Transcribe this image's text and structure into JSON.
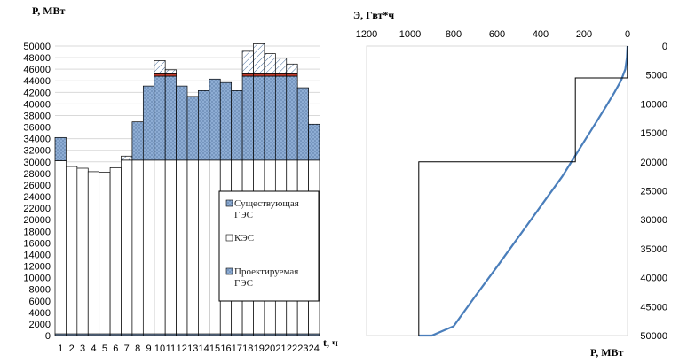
{
  "chart_data": [
    {
      "type": "bar",
      "subtype": "stacked",
      "ylabel": "P, МВт",
      "xlabel": "t, ч",
      "ylim": [
        0,
        50000
      ],
      "ytick_step": 2000,
      "categories": [
        "1",
        "2",
        "3",
        "4",
        "5",
        "6",
        "7",
        "8",
        "9",
        "10",
        "11",
        "12",
        "13",
        "14",
        "15",
        "16",
        "17",
        "18",
        "19",
        "20",
        "21",
        "22",
        "23",
        "24"
      ],
      "series": [
        {
          "name": "Существующая ГЭС",
          "values": [
            300,
            300,
            300,
            300,
            300,
            300,
            300,
            300,
            300,
            300,
            300,
            300,
            300,
            300,
            300,
            300,
            300,
            300,
            300,
            300,
            300,
            300,
            300,
            300
          ]
        },
        {
          "name": "КЭС",
          "values": [
            29900,
            28900,
            28600,
            28000,
            27900,
            28700,
            30000,
            30000,
            30000,
            30000,
            30000,
            30000,
            30000,
            30000,
            30000,
            30000,
            30000,
            30000,
            30000,
            30000,
            30000,
            30000,
            30000,
            30000
          ]
        },
        {
          "name": "Проектируемая ГЭС",
          "values": [
            4000,
            0,
            0,
            0,
            0,
            0,
            0,
            6600,
            12800,
            14500,
            14500,
            12800,
            11000,
            12000,
            14000,
            13400,
            12000,
            14500,
            14500,
            14500,
            14500,
            14500,
            12500,
            6200
          ]
        },
        {
          "name": "peak_hatch",
          "values": [
            0,
            0,
            0,
            0,
            0,
            0,
            700,
            0,
            0,
            2300,
            700,
            0,
            0,
            0,
            0,
            0,
            0,
            3900,
            5200,
            3500,
            2700,
            1700,
            0,
            0
          ]
        },
        {
          "name": "peak_red",
          "values": [
            0,
            0,
            0,
            0,
            0,
            0,
            0,
            0,
            0,
            400,
            400,
            0,
            0,
            0,
            0,
            0,
            0,
            400,
            400,
            400,
            400,
            400,
            0,
            0
          ]
        }
      ],
      "legend": {
        "placement": "bottom-right",
        "entries": [
          "Существующая ГЭС",
          "КЭС",
          "Проектируемая ГЭС"
        ]
      },
      "colors": {
        "hydro": "#8eadd4",
        "red": "#c0392b",
        "edge": "#000000"
      }
    },
    {
      "type": "line",
      "xlabel": "Э, Гвт*ч",
      "ylabel": "P, МВт",
      "x_axis_position": "top",
      "x_reversed": true,
      "y_reversed": true,
      "xlim": [
        1200,
        0
      ],
      "xtick_step": 200,
      "ylim": [
        0,
        50000
      ],
      "ytick_step": 5000,
      "series": [
        {
          "role": "curve",
          "color": "#4a7ebb",
          "x": [
            0,
            3,
            10,
            30,
            60,
            100,
            150,
            200,
            250,
            300,
            400,
            500,
            600,
            700,
            800,
            900,
            960
          ],
          "y": [
            0,
            2000,
            4000,
            6000,
            8000,
            10500,
            13500,
            16500,
            19500,
            22500,
            27700,
            32900,
            38100,
            43200,
            48400,
            51000,
            50000
          ]
        },
        {
          "role": "step",
          "color": "#000000",
          "x": [
            1,
            1,
            240,
            240,
            960,
            960
          ],
          "y": [
            0,
            5500,
            5500,
            20000,
            20000,
            50000
          ]
        }
      ]
    }
  ]
}
